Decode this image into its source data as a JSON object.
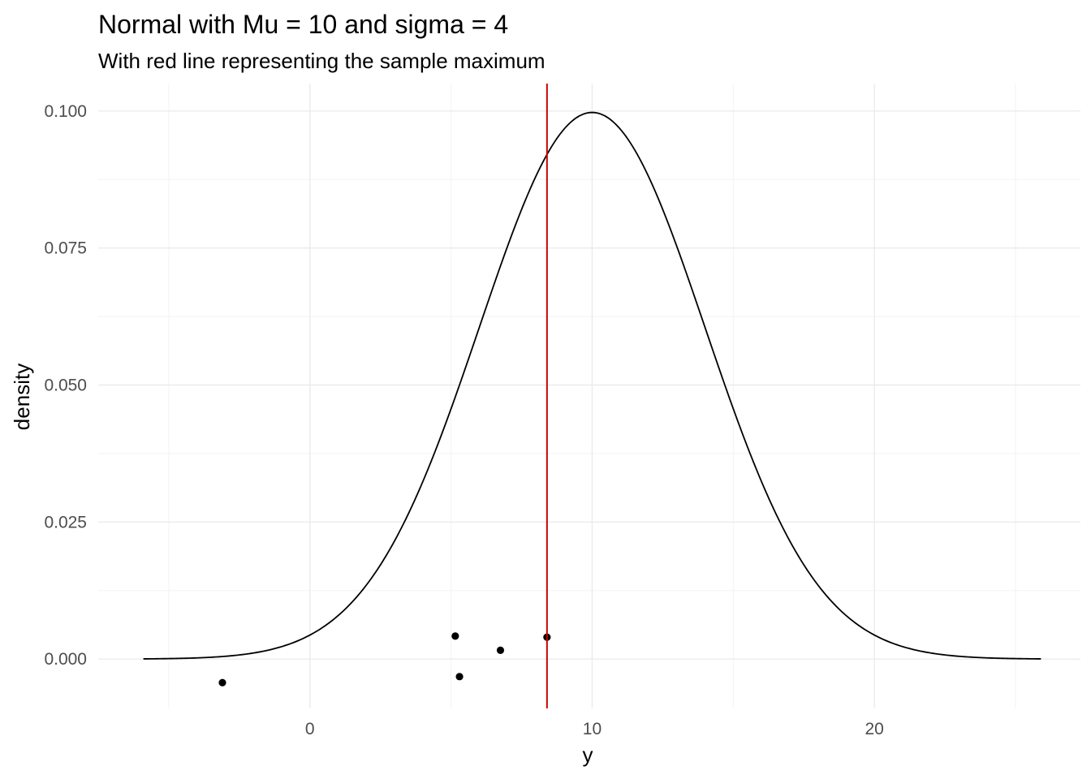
{
  "chart_data": {
    "type": "line",
    "title": "Normal with Mu = 10 and sigma = 4",
    "subtitle": "With red line representing the sample maximum",
    "xlabel": "y",
    "ylabel": "density",
    "xlim": [
      -7.5,
      27.3
    ],
    "ylim": [
      -0.009,
      0.105
    ],
    "x_ticks": [
      0,
      10,
      20
    ],
    "x_tick_labels": [
      "0",
      "10",
      "20"
    ],
    "y_ticks": [
      0,
      0.025,
      0.05,
      0.075,
      0.1
    ],
    "y_tick_labels": [
      "0.000",
      "0.025",
      "0.050",
      "0.075",
      "0.100"
    ],
    "x_minor": [
      -5,
      5,
      15,
      25
    ],
    "y_minor": [
      0.0125,
      0.0375,
      0.0625,
      0.0875
    ],
    "grid": true,
    "curve": {
      "distribution": "normal",
      "mu": 10,
      "sigma": 4,
      "x_from": -5.9,
      "x_to": 25.9,
      "color": "#000000"
    },
    "vline": {
      "x": 8.4,
      "color": "#cc0000",
      "label": "sample maximum"
    },
    "points": [
      {
        "x": -3.1,
        "y": -0.0043
      },
      {
        "x": 5.15,
        "y": 0.0042
      },
      {
        "x": 5.3,
        "y": -0.0032
      },
      {
        "x": 6.75,
        "y": 0.0016
      },
      {
        "x": 8.4,
        "y": 0.004
      }
    ],
    "point_color": "#000000"
  }
}
